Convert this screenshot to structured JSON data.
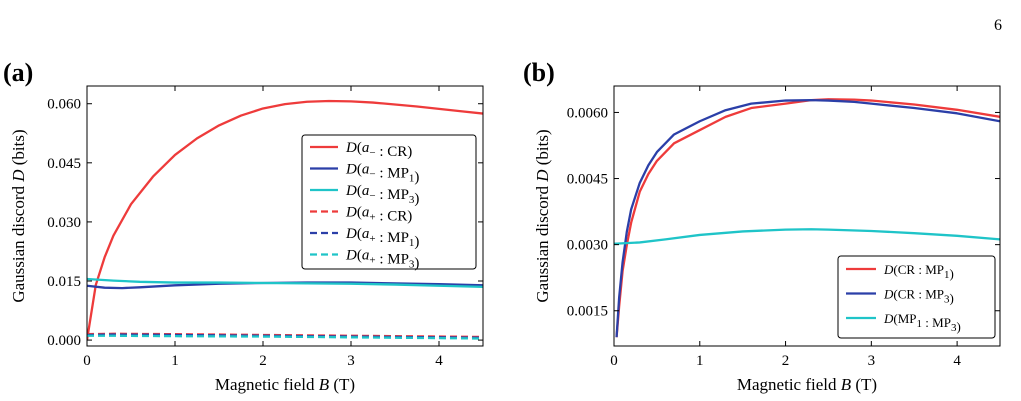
{
  "page_number": "6",
  "chart_data": [
    {
      "type": "line",
      "panel_label": "(a)",
      "xlabel": "Magnetic field B (T)",
      "xlabel_parts": {
        "prefix": "Magnetic field ",
        "var": "B",
        "suffix": " (T)"
      },
      "ylabel": "Gaussian discord D (bits)",
      "ylabel_parts": {
        "prefix": "Gaussian discord ",
        "var": "D",
        "suffix": " (bits)"
      },
      "xlim": [
        0,
        4.5
      ],
      "ylim": [
        -0.0015,
        0.0645
      ],
      "xticks": [
        0,
        1,
        2,
        3,
        4
      ],
      "xtick_labels": [
        "0",
        "1",
        "2",
        "3",
        "4"
      ],
      "yticks": [
        0.0,
        0.015,
        0.03,
        0.045,
        0.06
      ],
      "ytick_labels": [
        "0.000",
        "0.015",
        "0.030",
        "0.045",
        "0.060"
      ],
      "legend_position": "right",
      "grid": false,
      "series": [
        {
          "name": "D(a− : CR)",
          "color": "#ee3b3b",
          "dash": "solid",
          "x": [
            0,
            0.1,
            0.2,
            0.3,
            0.5,
            0.75,
            1.0,
            1.25,
            1.5,
            1.75,
            2.0,
            2.25,
            2.5,
            2.75,
            3.0,
            3.25,
            3.5,
            3.75,
            4.0,
            4.25,
            4.5
          ],
          "y": [
            0.0,
            0.014,
            0.021,
            0.0265,
            0.0345,
            0.0415,
            0.047,
            0.0512,
            0.0545,
            0.057,
            0.0588,
            0.0599,
            0.0605,
            0.0607,
            0.0606,
            0.0603,
            0.0598,
            0.0593,
            0.0587,
            0.0581,
            0.0575
          ]
        },
        {
          "name": "D(a− : MP1)",
          "color": "#2b3fa8",
          "dash": "solid",
          "x": [
            0,
            0.2,
            0.4,
            0.6,
            1.0,
            1.5,
            2.0,
            2.5,
            3.0,
            3.5,
            4.0,
            4.5
          ],
          "y": [
            0.0138,
            0.0133,
            0.0132,
            0.0134,
            0.0139,
            0.0143,
            0.0145,
            0.0146,
            0.0146,
            0.0144,
            0.0142,
            0.0139
          ]
        },
        {
          "name": "D(a− : MP3)",
          "color": "#1fc4c8",
          "dash": "solid",
          "x": [
            0,
            0.3,
            0.6,
            1.0,
            1.5,
            2.0,
            2.5,
            3.0,
            3.5,
            4.0,
            4.5
          ],
          "y": [
            0.0155,
            0.0151,
            0.0148,
            0.0146,
            0.0146,
            0.0145,
            0.0144,
            0.0143,
            0.0141,
            0.0138,
            0.0135
          ]
        },
        {
          "name": "D(a+ : CR)",
          "color": "#ee3b3b",
          "dash": "dashed",
          "x": [
            0,
            0.3,
            1.0,
            2.0,
            3.0,
            4.0,
            4.5
          ],
          "y": [
            0.0015,
            0.0016,
            0.0015,
            0.0013,
            0.0011,
            0.0009,
            0.0008
          ]
        },
        {
          "name": "D(a+ : MP1)",
          "color": "#2b3fa8",
          "dash": "dashed",
          "x": [
            0,
            0.3,
            1.0,
            2.0,
            3.0,
            4.0,
            4.5
          ],
          "y": [
            0.0013,
            0.0014,
            0.0013,
            0.0011,
            0.0009,
            0.0007,
            0.0006
          ]
        },
        {
          "name": "D(a+ : MP3)",
          "color": "#1fc4c8",
          "dash": "dashed",
          "x": [
            0,
            0.3,
            1.0,
            2.0,
            3.0,
            4.0,
            4.5
          ],
          "y": [
            0.0011,
            0.0011,
            0.001,
            0.0009,
            0.0007,
            0.0005,
            0.0004
          ]
        }
      ]
    },
    {
      "type": "line",
      "panel_label": "(b)",
      "xlabel": "Magnetic field B (T)",
      "xlabel_parts": {
        "prefix": "Magnetic field ",
        "var": "B",
        "suffix": " (T)"
      },
      "ylabel": "Gaussian discord D (bits)",
      "ylabel_parts": {
        "prefix": "Gaussian discord ",
        "var": "D",
        "suffix": " (bits)"
      },
      "xlim": [
        0,
        4.5
      ],
      "ylim": [
        0.0007,
        0.0066
      ],
      "xticks": [
        0,
        1,
        2,
        3,
        4
      ],
      "xtick_labels": [
        "0",
        "1",
        "2",
        "3",
        "4"
      ],
      "yticks": [
        0.0015,
        0.003,
        0.0045,
        0.006
      ],
      "ytick_labels": [
        "0.0015",
        "0.0030",
        "0.0045",
        "0.0060"
      ],
      "legend_position": "lower-right",
      "grid": false,
      "series": [
        {
          "name": "D(CR : MP1)",
          "color": "#ee3b3b",
          "dash": "solid",
          "x": [
            0.03,
            0.06,
            0.1,
            0.15,
            0.2,
            0.3,
            0.4,
            0.5,
            0.7,
            1.0,
            1.3,
            1.6,
            2.0,
            2.3,
            2.5,
            2.8,
            3.0,
            3.5,
            4.0,
            4.5
          ],
          "y": [
            0.0009,
            0.0016,
            0.0024,
            0.003,
            0.0035,
            0.0042,
            0.0046,
            0.0049,
            0.0053,
            0.0056,
            0.0059,
            0.0061,
            0.0062,
            0.00628,
            0.0063,
            0.00629,
            0.00627,
            0.00618,
            0.00606,
            0.0059
          ]
        },
        {
          "name": "D(CR : MP3)",
          "color": "#2b3fa8",
          "dash": "solid",
          "x": [
            0.03,
            0.06,
            0.1,
            0.15,
            0.2,
            0.3,
            0.4,
            0.5,
            0.7,
            1.0,
            1.3,
            1.6,
            2.0,
            2.3,
            2.5,
            2.8,
            3.0,
            3.5,
            4.0,
            4.5
          ],
          "y": [
            0.0009,
            0.0018,
            0.0026,
            0.0033,
            0.0038,
            0.0044,
            0.0048,
            0.0051,
            0.0055,
            0.0058,
            0.00605,
            0.0062,
            0.00627,
            0.00628,
            0.00627,
            0.00624,
            0.0062,
            0.0061,
            0.00598,
            0.0058
          ]
        },
        {
          "name": "D(MP1 : MP3)",
          "color": "#1fc4c8",
          "dash": "solid",
          "x": [
            0,
            0.3,
            0.6,
            1.0,
            1.5,
            2.0,
            2.3,
            2.5,
            3.0,
            3.5,
            4.0,
            4.5
          ],
          "y": [
            0.00302,
            0.00305,
            0.00312,
            0.00322,
            0.0033,
            0.00334,
            0.00335,
            0.00334,
            0.00331,
            0.00326,
            0.0032,
            0.00312
          ]
        }
      ]
    }
  ]
}
